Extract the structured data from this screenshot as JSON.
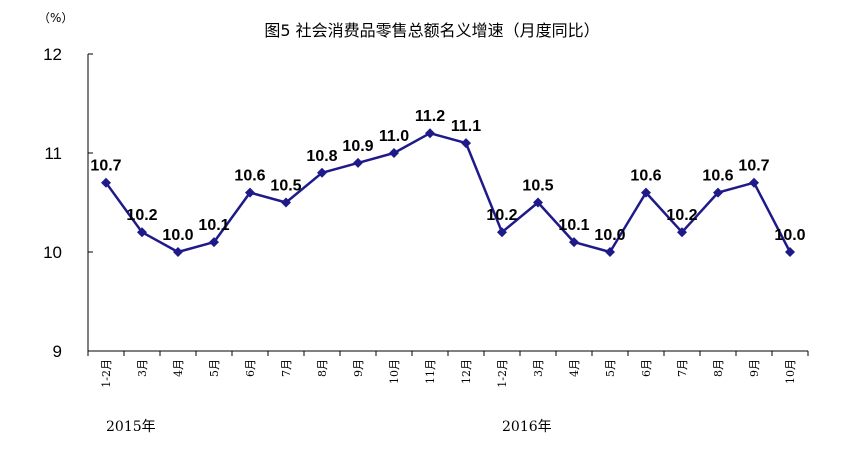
{
  "chart_data": {
    "type": "line",
    "title": "图5  社会消费品零售总额名义增速（月度同比）",
    "unit_label": "（%）",
    "categories": [
      "1-2月",
      "3月",
      "4月",
      "5月",
      "6月",
      "7月",
      "8月",
      "9月",
      "10月",
      "11月",
      "12月",
      "1-2月",
      "3月",
      "4月",
      "5月",
      "6月",
      "7月",
      "8月",
      "9月",
      "10月"
    ],
    "year_groups": [
      {
        "label": "2015年",
        "start_index": 0
      },
      {
        "label": "2016年",
        "start_index": 11
      }
    ],
    "series": [
      {
        "values": [
          10.7,
          10.2,
          10.0,
          10.1,
          10.6,
          10.5,
          10.8,
          10.9,
          11.0,
          11.2,
          11.1,
          10.2,
          10.5,
          10.1,
          10.0,
          10.6,
          10.2,
          10.6,
          10.7,
          10.0
        ],
        "data_labels": [
          "10.7",
          "10.2",
          "10.0",
          "10.1",
          "10.6",
          "10.5",
          "10.8",
          "10.9",
          "11.0",
          "11.2",
          "11.1",
          "10.2",
          "10.5",
          "10.1",
          "10.0",
          "10.6",
          "10.2",
          "10.6",
          "10.7",
          "10.0"
        ],
        "color": "#1f1a8a"
      }
    ],
    "ylim": [
      9,
      12
    ],
    "yticks": [
      "9",
      "10",
      "11",
      "12"
    ],
    "grid": false,
    "legend": "none"
  }
}
